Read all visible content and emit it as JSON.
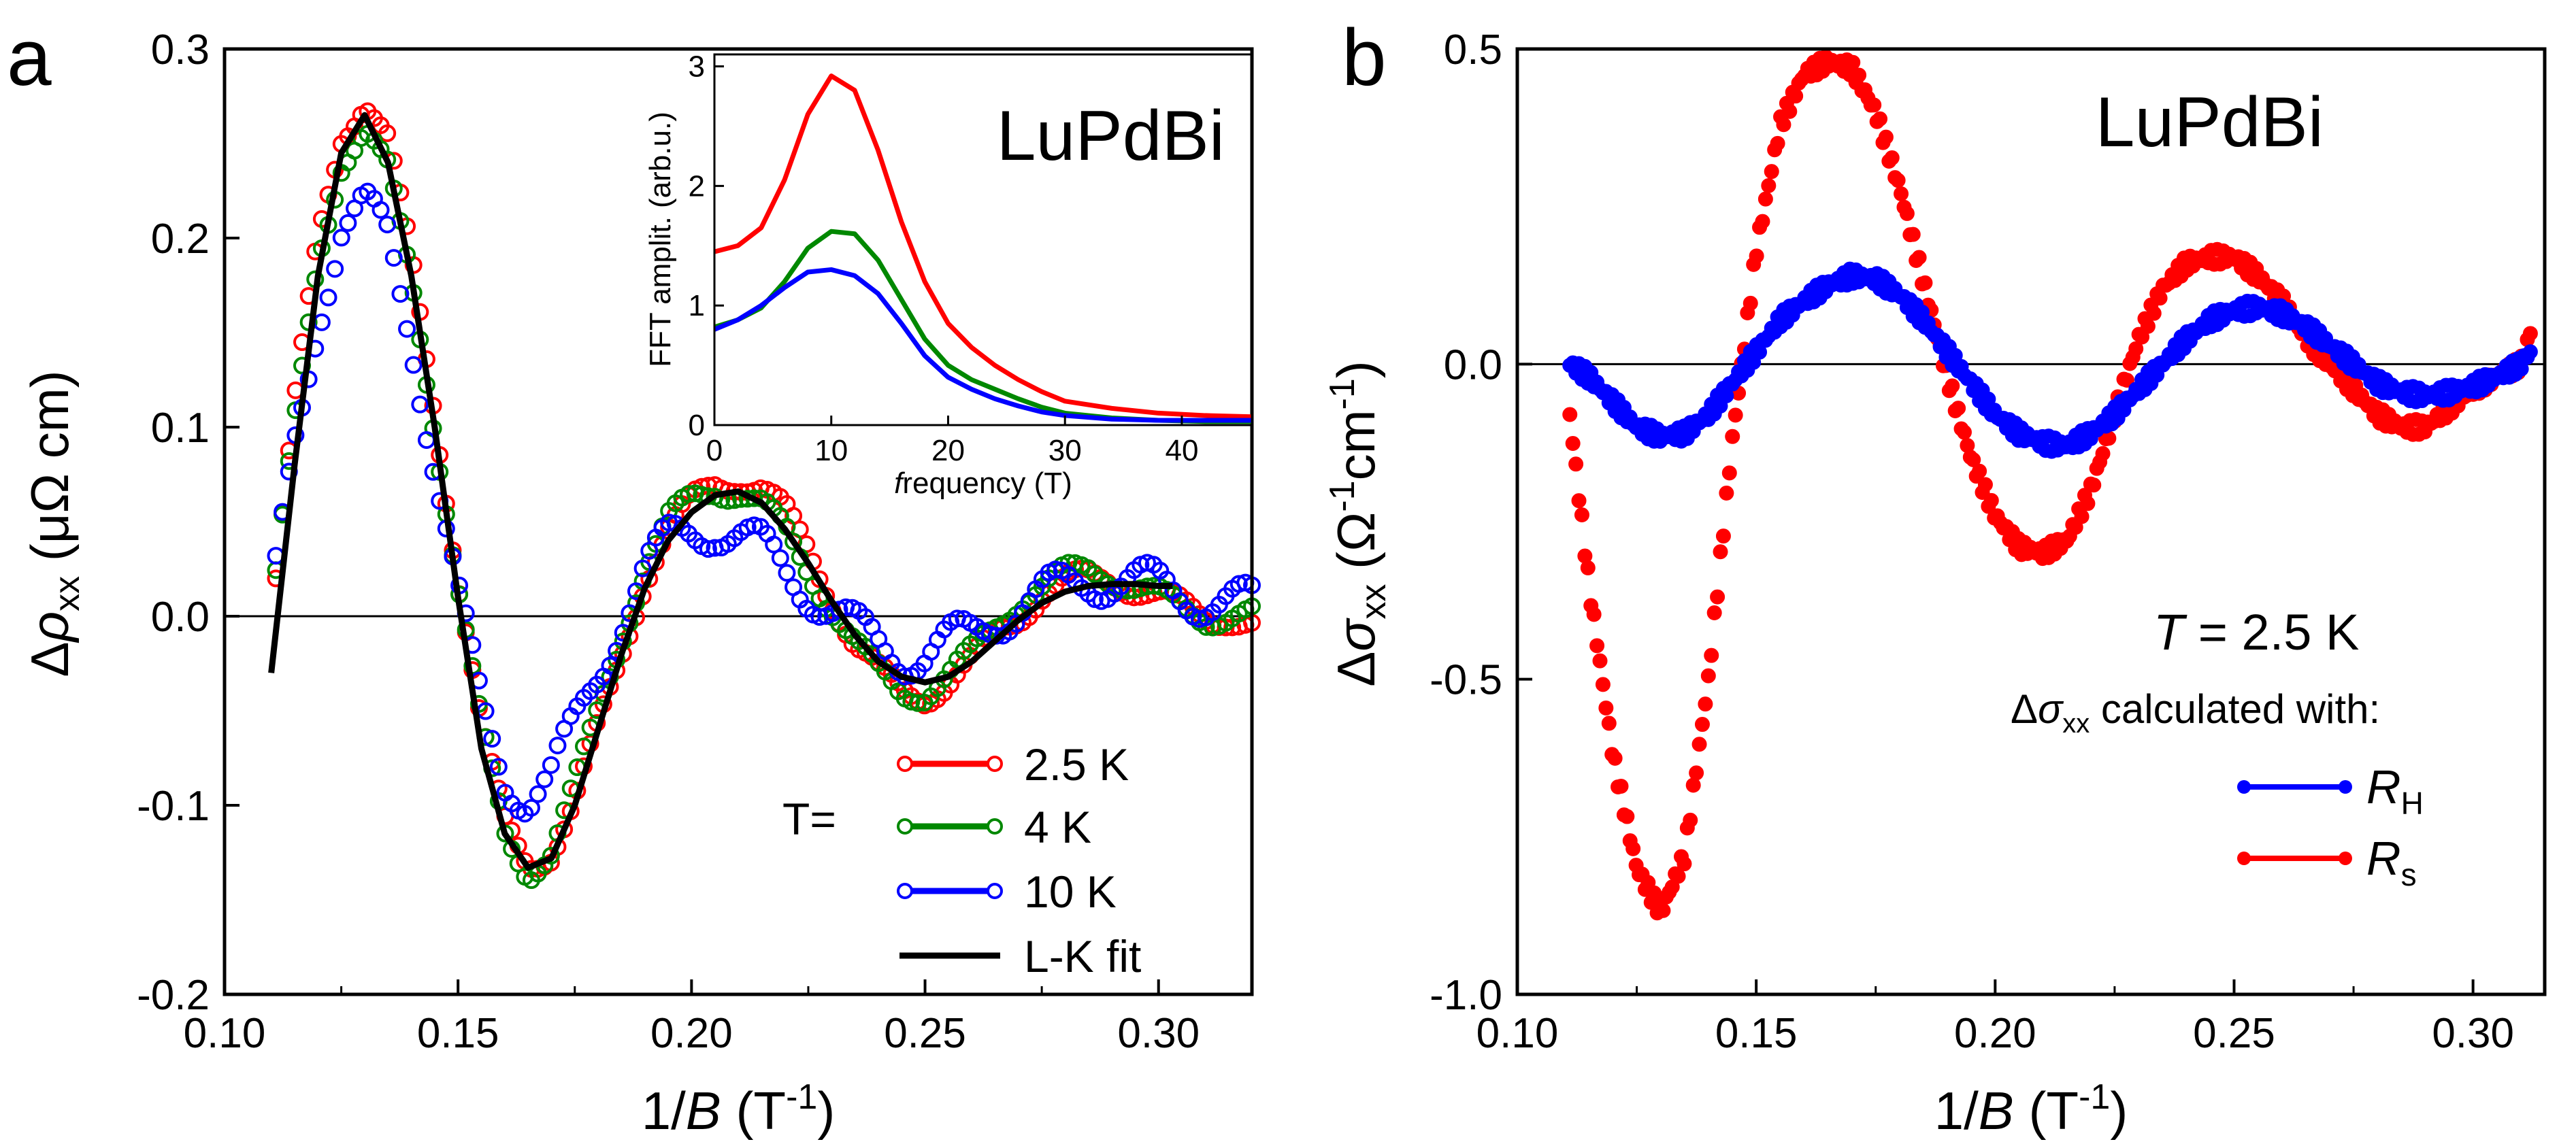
{
  "chart_data": [
    {
      "panel": "a",
      "type": "scatter",
      "sample": "LuPdBi",
      "xlabel": "1/B (T⁻¹)",
      "ylabel": "Δρxx (μΩ cm)",
      "xlim": [
        0.1,
        0.32
      ],
      "ylim": [
        -0.2,
        0.3
      ],
      "xticks": [
        "0.10",
        "0.15",
        "0.20",
        "0.25",
        "0.30"
      ],
      "yticks": [
        "-0.2",
        "-0.1",
        "0.0",
        "0.1",
        "0.2",
        "0.3"
      ],
      "legend_title": "T=",
      "series": [
        {
          "name": "2.5 K",
          "color": "#ff0000",
          "style": "open-circles",
          "x": [
            0.111,
            0.115,
            0.12,
            0.125,
            0.13,
            0.135,
            0.14,
            0.145,
            0.15,
            0.155,
            0.16,
            0.165,
            0.17,
            0.175,
            0.18,
            0.185,
            0.19,
            0.195,
            0.2,
            0.205,
            0.21,
            0.215,
            0.22,
            0.225,
            0.23,
            0.235,
            0.24,
            0.245,
            0.25,
            0.255,
            0.26,
            0.265,
            0.27,
            0.275,
            0.28,
            0.285,
            0.29,
            0.295,
            0.3,
            0.305,
            0.31,
            0.315,
            0.32
          ],
          "y": [
            0.02,
            0.11,
            0.2,
            0.255,
            0.272,
            0.25,
            0.19,
            0.11,
            0.02,
            -0.06,
            -0.11,
            -0.13,
            -0.125,
            -0.1,
            -0.06,
            -0.02,
            0.02,
            0.045,
            0.06,
            0.07,
            0.072,
            0.068,
            0.055,
            0.035,
            0.01,
            -0.015,
            -0.03,
            -0.04,
            -0.042,
            -0.035,
            -0.025,
            -0.01,
            0.0,
            0.012,
            0.018,
            0.02,
            0.02,
            0.015,
            0.01,
            0.005,
            0.0,
            0.0,
            -0.005
          ]
        },
        {
          "name": "4 K",
          "color": "#008800",
          "style": "open-circles",
          "x": [
            0.111,
            0.115,
            0.12,
            0.125,
            0.13,
            0.135,
            0.14,
            0.145,
            0.15,
            0.155,
            0.16,
            0.165,
            0.17,
            0.175,
            0.18,
            0.185,
            0.19,
            0.195,
            0.2,
            0.205,
            0.21,
            0.215,
            0.22,
            0.225,
            0.23,
            0.235,
            0.24,
            0.245,
            0.25,
            0.255,
            0.26,
            0.265,
            0.27,
            0.275,
            0.28,
            0.285,
            0.29,
            0.295,
            0.3,
            0.305,
            0.31,
            0.315,
            0.32
          ],
          "y": [
            0.02,
            0.1,
            0.19,
            0.24,
            0.255,
            0.235,
            0.18,
            0.1,
            0.015,
            -0.06,
            -0.115,
            -0.135,
            -0.125,
            -0.09,
            -0.05,
            -0.01,
            0.025,
            0.05,
            0.062,
            0.068,
            0.066,
            0.058,
            0.045,
            0.025,
            0.005,
            -0.015,
            -0.03,
            -0.04,
            -0.04,
            -0.032,
            -0.02,
            -0.005,
            0.008,
            0.015,
            0.022,
            0.025,
            0.022,
            0.015,
            0.01,
            0.005,
            0.0,
            0.0,
            0.0
          ]
        },
        {
          "name": "10 K",
          "color": "#0000ff",
          "style": "open-circles",
          "x": [
            0.111,
            0.115,
            0.12,
            0.125,
            0.13,
            0.135,
            0.14,
            0.145,
            0.15,
            0.155,
            0.16,
            0.165,
            0.17,
            0.175,
            0.18,
            0.185,
            0.19,
            0.195,
            0.2,
            0.205,
            0.21,
            0.215,
            0.22,
            0.225,
            0.23,
            0.235,
            0.24,
            0.245,
            0.25,
            0.255,
            0.26,
            0.265,
            0.27,
            0.275,
            0.28,
            0.285,
            0.29,
            0.295,
            0.3,
            0.305,
            0.31,
            0.315,
            0.32
          ],
          "y": [
            0.02,
            0.09,
            0.16,
            0.205,
            0.215,
            0.2,
            0.15,
            0.08,
            0.01,
            -0.05,
            -0.085,
            -0.095,
            -0.085,
            -0.06,
            -0.03,
            0.0,
            0.025,
            0.038,
            0.045,
            0.048,
            0.042,
            0.035,
            0.025,
            0.015,
            0.003,
            -0.008,
            -0.015,
            -0.02,
            -0.02,
            -0.015,
            -0.01,
            0.0,
            0.005,
            0.01,
            0.015,
            0.02,
            0.02,
            0.018,
            0.015,
            0.012,
            0.01,
            0.008,
            0.005
          ]
        },
        {
          "name": "L-K fit",
          "color": "#000000",
          "style": "line",
          "x": [
            0.11,
            0.115,
            0.12,
            0.125,
            0.13,
            0.135,
            0.14,
            0.145,
            0.15,
            0.155,
            0.16,
            0.165,
            0.17,
            0.175,
            0.18,
            0.185,
            0.19,
            0.195,
            0.2,
            0.205,
            0.21,
            0.215,
            0.22,
            0.225,
            0.23,
            0.235,
            0.24,
            0.245,
            0.25,
            0.255,
            0.26,
            0.265,
            0.27,
            0.275,
            0.28,
            0.285,
            0.29,
            0.295,
            0.3,
            0.303
          ],
          "y": [
            -0.03,
            0.08,
            0.18,
            0.245,
            0.265,
            0.24,
            0.18,
            0.1,
            0.01,
            -0.07,
            -0.115,
            -0.133,
            -0.128,
            -0.1,
            -0.06,
            -0.02,
            0.015,
            0.04,
            0.055,
            0.064,
            0.066,
            0.06,
            0.046,
            0.028,
            0.008,
            -0.01,
            -0.024,
            -0.032,
            -0.035,
            -0.032,
            -0.024,
            -0.013,
            -0.002,
            0.007,
            0.013,
            0.016,
            0.017,
            0.017,
            0.016,
            0.016
          ]
        }
      ],
      "inset": {
        "type": "line",
        "xlabel": "frequency (T)",
        "ylabel": "FFT amplit. (arb.u.)",
        "xlim": [
          0,
          46
        ],
        "ylim": [
          0,
          3.1
        ],
        "xticks": [
          "0",
          "10",
          "20",
          "30",
          "40"
        ],
        "yticks": [
          "0",
          "1",
          "2",
          "3"
        ],
        "series": [
          {
            "name": "2.5 K",
            "color": "#ff0000",
            "x": [
              0,
              2,
              4,
              6,
              8,
              10,
              12,
              14,
              16,
              18,
              20,
              22,
              24,
              26,
              28,
              30,
              34,
              38,
              42,
              46
            ],
            "y": [
              1.45,
              1.5,
              1.65,
              2.05,
              2.6,
              2.92,
              2.8,
              2.3,
              1.7,
              1.2,
              0.85,
              0.65,
              0.5,
              0.38,
              0.28,
              0.2,
              0.14,
              0.1,
              0.08,
              0.07
            ]
          },
          {
            "name": "4 K",
            "color": "#008800",
            "x": [
              0,
              2,
              4,
              6,
              8,
              10,
              12,
              14,
              16,
              18,
              20,
              22,
              24,
              26,
              28,
              30,
              34,
              38,
              42,
              46
            ],
            "y": [
              0.82,
              0.88,
              0.98,
              1.2,
              1.48,
              1.62,
              1.6,
              1.38,
              1.05,
              0.72,
              0.5,
              0.38,
              0.3,
              0.22,
              0.15,
              0.1,
              0.06,
              0.04,
              0.03,
              0.03
            ]
          },
          {
            "name": "10 K",
            "color": "#0000ff",
            "x": [
              0,
              2,
              4,
              6,
              8,
              10,
              12,
              14,
              16,
              18,
              20,
              22,
              24,
              26,
              28,
              30,
              34,
              38,
              42,
              46
            ],
            "y": [
              0.8,
              0.88,
              1.0,
              1.15,
              1.28,
              1.3,
              1.25,
              1.1,
              0.85,
              0.58,
              0.4,
              0.3,
              0.22,
              0.16,
              0.11,
              0.08,
              0.05,
              0.04,
              0.04,
              0.04
            ]
          }
        ]
      }
    },
    {
      "panel": "b",
      "type": "scatter",
      "sample": "LuPdBi",
      "xlabel": "1/B (T⁻¹)",
      "ylabel": "Δσxx (Ω⁻¹cm⁻¹)",
      "xlim": [
        0.1,
        0.315
      ],
      "ylim": [
        -1.0,
        0.5
      ],
      "xticks": [
        "0.10",
        "0.15",
        "0.20",
        "0.25",
        "0.30"
      ],
      "yticks": [
        "-1.0",
        "-0.5",
        "0.0",
        "0.5"
      ],
      "annotation": "T = 2.5 K",
      "legend_title": "Δσxx calculated with:",
      "series": [
        {
          "name": "R_H",
          "label": "RH",
          "color": "#0000ff",
          "style": "filled-circles",
          "x": [
            0.111,
            0.115,
            0.12,
            0.125,
            0.13,
            0.135,
            0.14,
            0.145,
            0.15,
            0.155,
            0.16,
            0.165,
            0.17,
            0.175,
            0.18,
            0.185,
            0.19,
            0.195,
            0.2,
            0.205,
            0.21,
            0.215,
            0.22,
            0.225,
            0.23,
            0.235,
            0.24,
            0.245,
            0.25,
            0.255,
            0.26,
            0.265,
            0.27,
            0.275,
            0.28,
            0.285,
            0.29,
            0.295,
            0.3,
            0.305,
            0.31,
            0.312
          ],
          "y": [
            0.0,
            -0.02,
            -0.06,
            -0.1,
            -0.115,
            -0.11,
            -0.08,
            -0.03,
            0.02,
            0.07,
            0.1,
            0.125,
            0.14,
            0.135,
            0.11,
            0.07,
            0.02,
            -0.03,
            -0.08,
            -0.11,
            -0.125,
            -0.13,
            -0.11,
            -0.08,
            -0.04,
            0.0,
            0.04,
            0.07,
            0.085,
            0.09,
            0.08,
            0.06,
            0.03,
            0.0,
            -0.03,
            -0.045,
            -0.05,
            -0.045,
            -0.035,
            -0.02,
            0.0,
            0.02
          ]
        },
        {
          "name": "R_s",
          "label": "Rs",
          "color": "#ff0000",
          "style": "filled-circles",
          "x": [
            0.111,
            0.115,
            0.12,
            0.125,
            0.13,
            0.135,
            0.14,
            0.145,
            0.15,
            0.155,
            0.16,
            0.165,
            0.17,
            0.175,
            0.18,
            0.185,
            0.19,
            0.195,
            0.2,
            0.205,
            0.21,
            0.215,
            0.22,
            0.225,
            0.23,
            0.235,
            0.24,
            0.245,
            0.25,
            0.255,
            0.26,
            0.265,
            0.27,
            0.275,
            0.28,
            0.285,
            0.29,
            0.295,
            0.3,
            0.305,
            0.31,
            0.312
          ],
          "y": [
            -0.08,
            -0.35,
            -0.62,
            -0.8,
            -0.87,
            -0.78,
            -0.5,
            -0.12,
            0.18,
            0.38,
            0.46,
            0.48,
            0.47,
            0.4,
            0.28,
            0.13,
            -0.02,
            -0.15,
            -0.24,
            -0.29,
            -0.3,
            -0.28,
            -0.2,
            -0.08,
            0.04,
            0.12,
            0.16,
            0.17,
            0.17,
            0.14,
            0.1,
            0.04,
            0.0,
            -0.04,
            -0.08,
            -0.1,
            -0.1,
            -0.07,
            -0.04,
            -0.02,
            0.0,
            0.05
          ]
        }
      ]
    }
  ]
}
